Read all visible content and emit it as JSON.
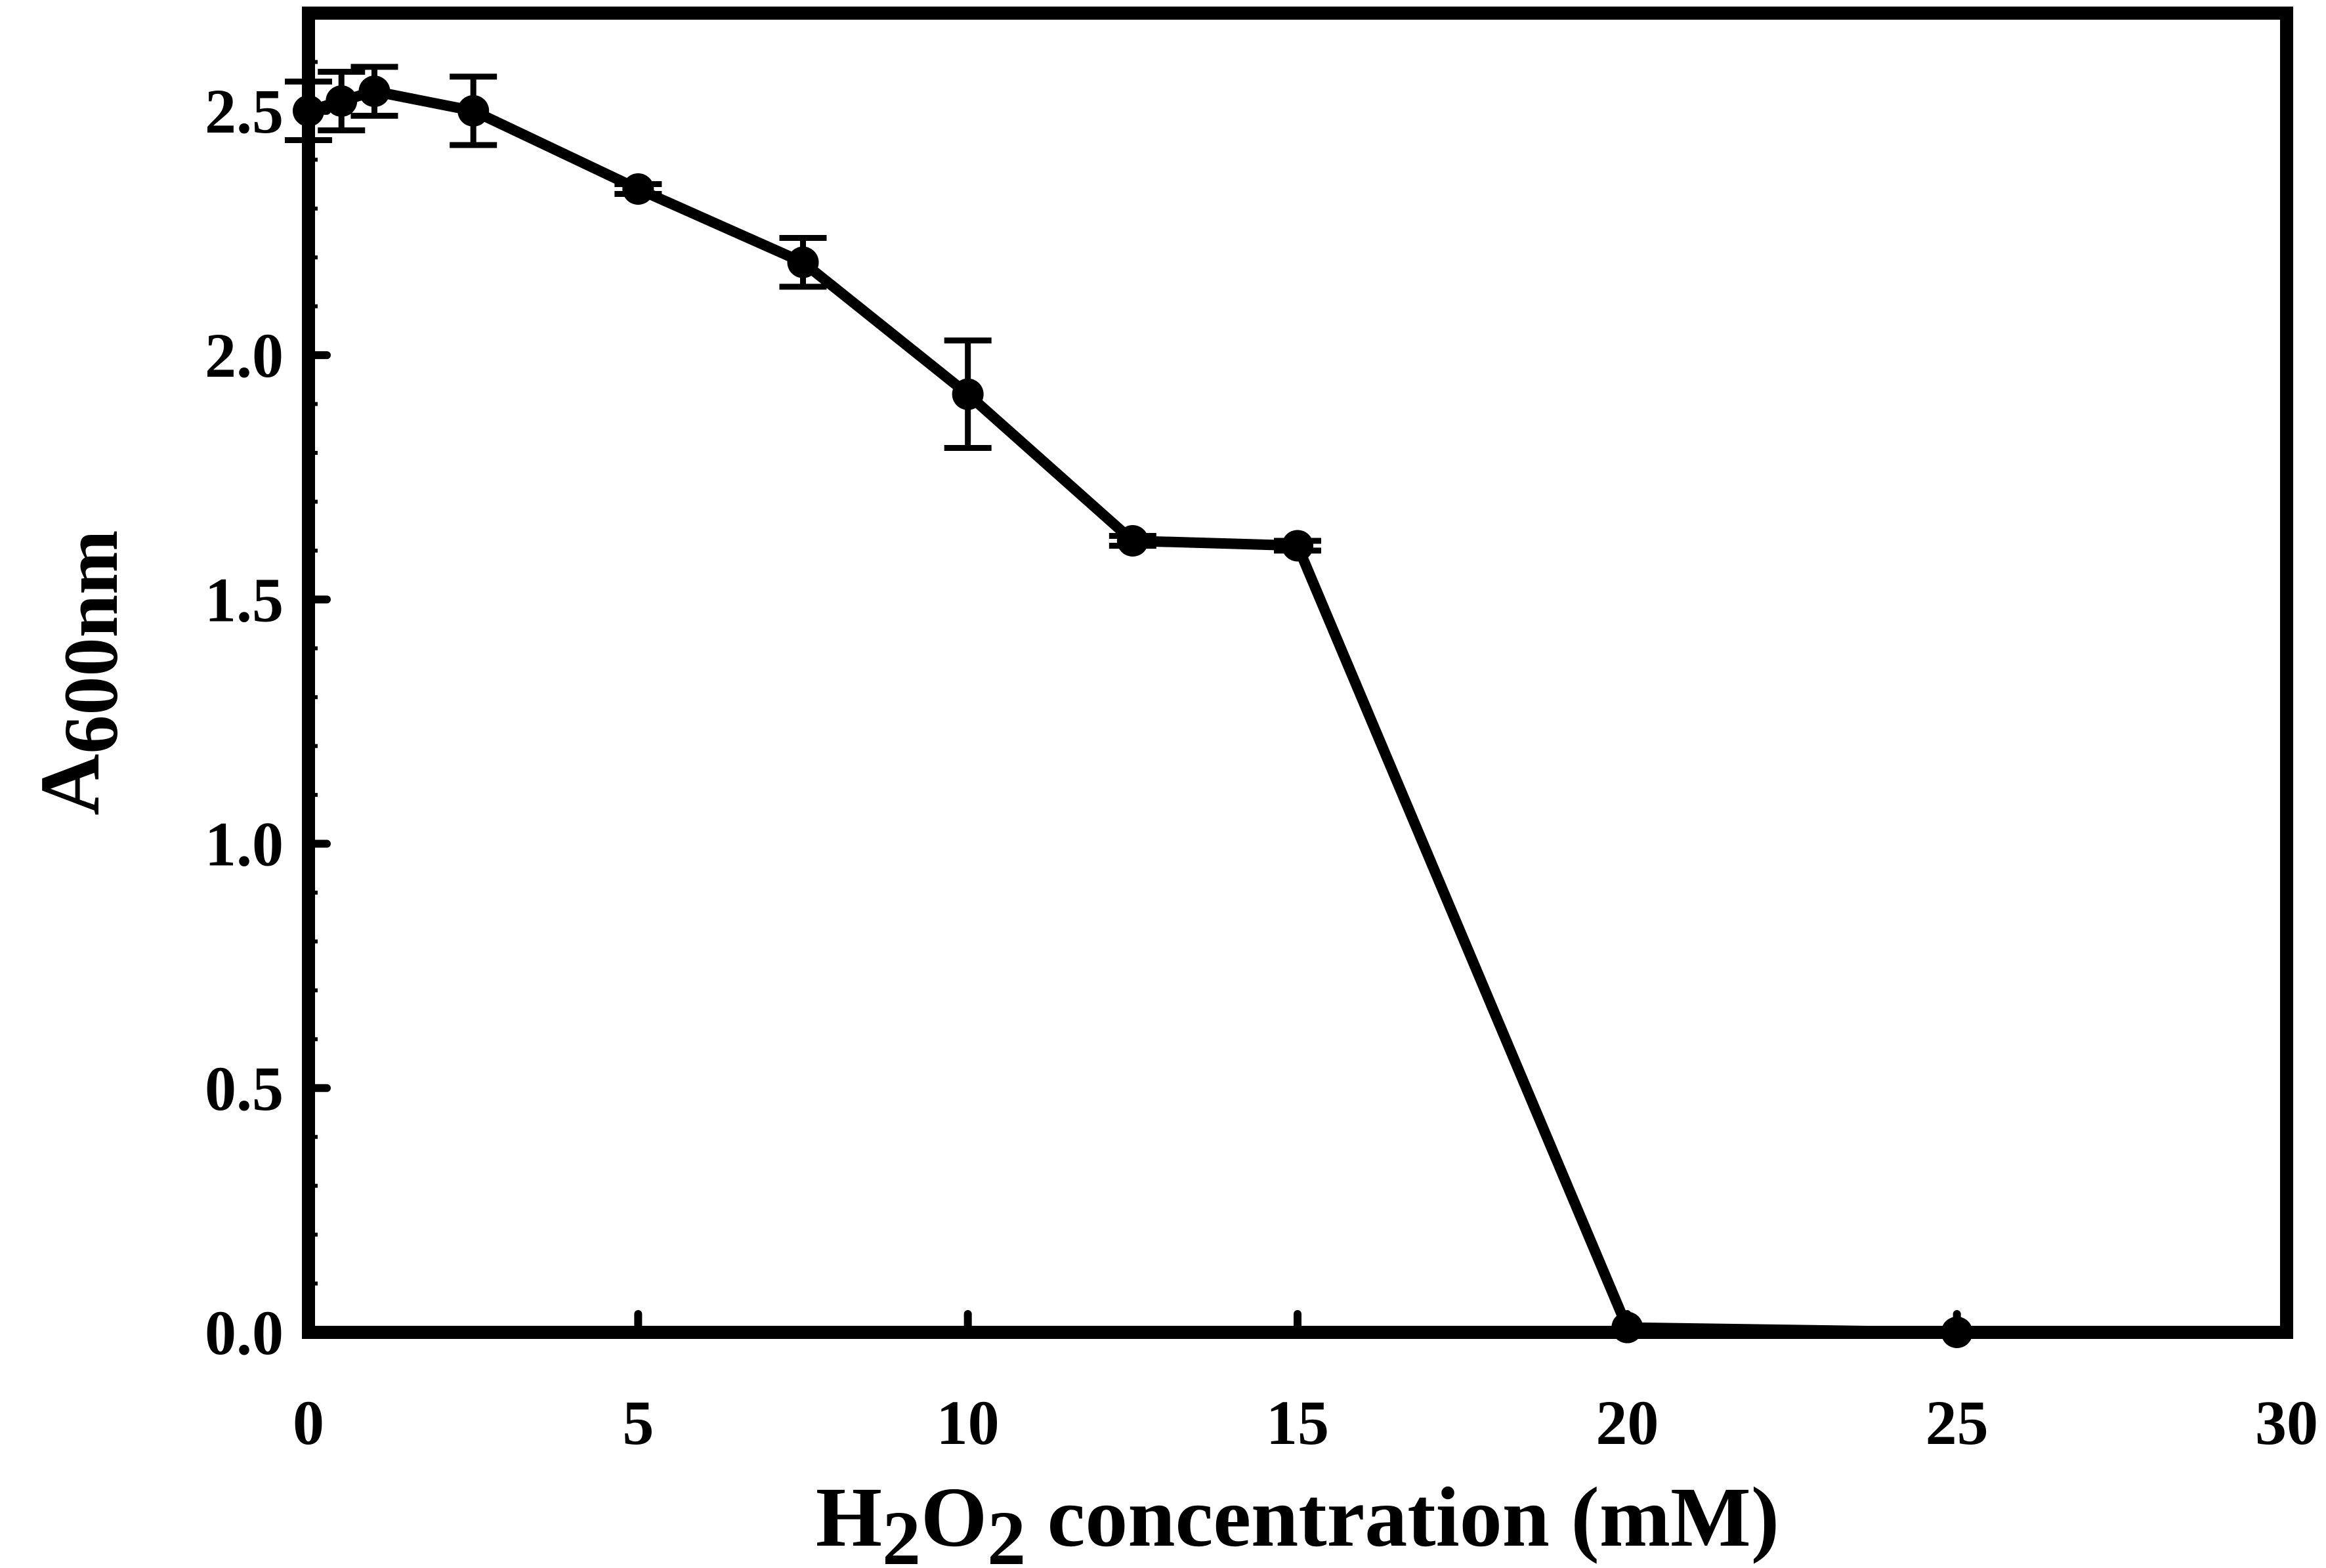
{
  "chart_data": {
    "type": "line",
    "title": "",
    "xlabel": {
      "parts": [
        {
          "text": "H",
          "sub": false
        },
        {
          "text": "2",
          "sub": true
        },
        {
          "text": "O",
          "sub": false
        },
        {
          "text": "2",
          "sub": true
        },
        {
          "text": " concentration (mM)",
          "sub": false
        }
      ]
    },
    "ylabel": {
      "parts": [
        {
          "text": "A",
          "sub": false
        },
        {
          "text": "600nm",
          "sub": true
        }
      ]
    },
    "xlim": [
      0,
      30
    ],
    "ylim": [
      0,
      2.7
    ],
    "x_ticks": [
      0,
      5,
      10,
      15,
      20,
      25,
      30
    ],
    "x_tick_labels": [
      "0",
      "5",
      "10",
      "15",
      "20",
      "25",
      "30"
    ],
    "y_ticks": [
      0,
      0.5,
      1.0,
      1.5,
      2.0,
      2.5
    ],
    "y_tick_labels": [
      "0.0",
      "0.5",
      "1.0",
      "1.5",
      "2.0",
      "2.5"
    ],
    "y_minor_step": 0.1,
    "grid": false,
    "legend": "none",
    "series": [
      {
        "x": [
          0,
          0.5,
          1,
          2.5,
          5,
          7.5,
          10,
          12.5,
          15,
          20,
          25
        ],
        "y": [
          2.5,
          2.52,
          2.54,
          2.5,
          2.34,
          2.19,
          1.92,
          1.62,
          1.61,
          0.01,
          0.0
        ],
        "error": [
          0.06,
          0.06,
          0.05,
          0.07,
          0.01,
          0.05,
          0.11,
          0.01,
          0.01,
          0.0,
          0.0
        ],
        "color": "#000000"
      }
    ]
  }
}
